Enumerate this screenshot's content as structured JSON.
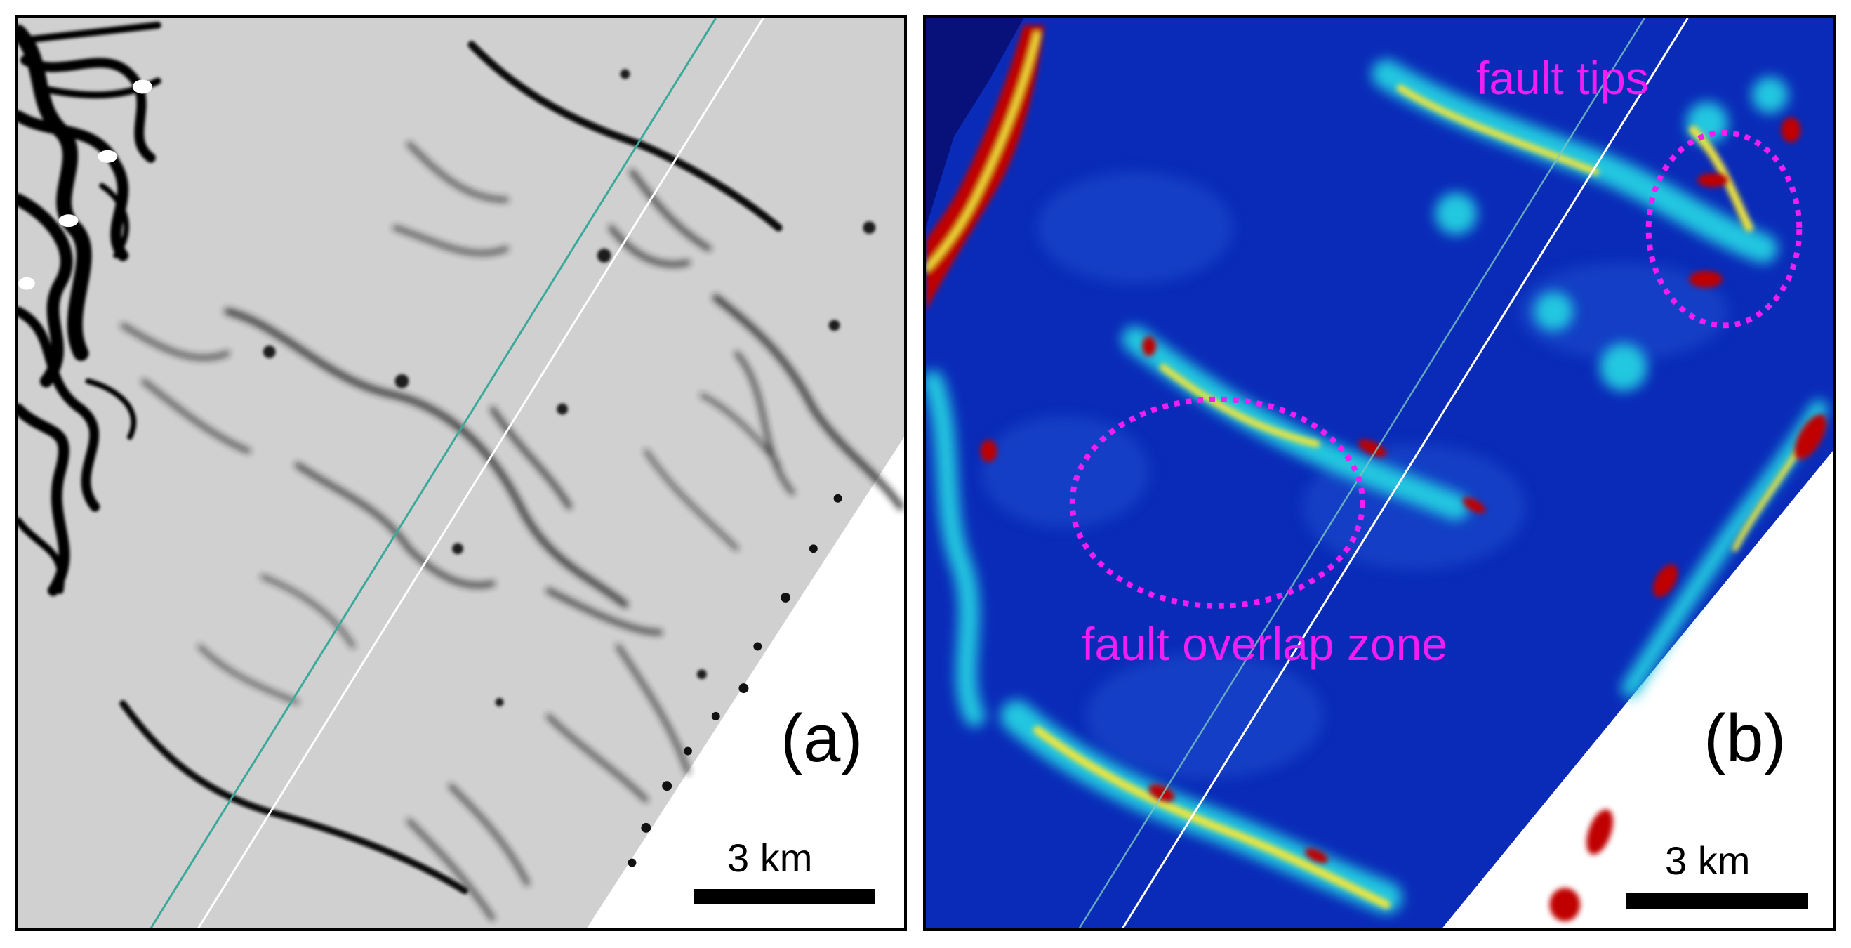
{
  "panels": [
    {
      "label": "(a)",
      "scale_bar_label": "3 km",
      "colors": {
        "background": "#d0d0d0",
        "features": "#000000",
        "blank": "#ffffff",
        "line_teal": "#3aa99a",
        "line_white": "#ffffff"
      }
    },
    {
      "label": "(b)",
      "scale_bar_label": "3 km",
      "colors": {
        "background": "#06168c",
        "low": "#0a2bb8",
        "mid": "#22c7e0",
        "high": "#f2e63a",
        "peak": "#c00000",
        "blank": "#ffffff"
      }
    }
  ],
  "annotations": {
    "fault_tips": "fault tips",
    "fault_overlap_zone": "fault overlap zone",
    "color": "#f01ef0"
  }
}
